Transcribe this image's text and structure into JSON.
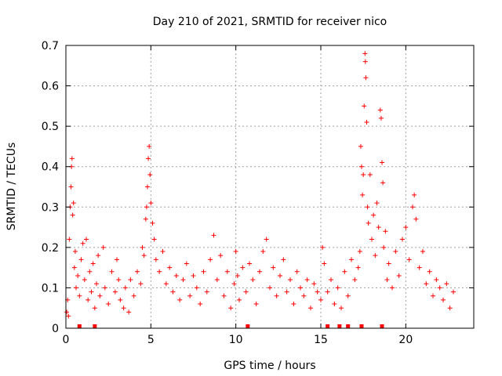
{
  "chart_data": {
    "type": "scatter",
    "title": "Day 210 of 2021, SRMTID for receiver nico",
    "xlabel": "GPS time / hours",
    "ylabel": "SRMTID / TECUs",
    "xlim": [
      0,
      24
    ],
    "ylim": [
      0,
      0.7
    ],
    "x_ticks": [
      0,
      5,
      10,
      15,
      20
    ],
    "x_tick_labels": [
      "0",
      "5",
      "10",
      "15",
      "20"
    ],
    "y_ticks": [
      0,
      0.1,
      0.2,
      0.3,
      0.4,
      0.5,
      0.6,
      0.7
    ],
    "y_tick_labels": [
      "0",
      "0.1",
      "0.2",
      "0.3",
      "0.4",
      "0.5",
      "0.6",
      "0.7"
    ],
    "grid": true,
    "marker": "+",
    "series_color": "#ff0000",
    "series": [
      {
        "name": "SRMTID",
        "points": [
          [
            0.05,
            0.04
          ],
          [
            0.1,
            0.07
          ],
          [
            0.15,
            0.03
          ],
          [
            0.2,
            0.22
          ],
          [
            0.25,
            0.3
          ],
          [
            0.3,
            0.35
          ],
          [
            0.33,
            0.4
          ],
          [
            0.36,
            0.42
          ],
          [
            0.4,
            0.28
          ],
          [
            0.45,
            0.31
          ],
          [
            0.5,
            0.15
          ],
          [
            0.55,
            0.19
          ],
          [
            0.6,
            0.1
          ],
          [
            0.7,
            0.13
          ],
          [
            0.8,
            0.08
          ],
          [
            0.9,
            0.17
          ],
          [
            1.0,
            0.21
          ],
          [
            1.1,
            0.12
          ],
          [
            1.2,
            0.22
          ],
          [
            1.3,
            0.07
          ],
          [
            1.4,
            0.14
          ],
          [
            1.5,
            0.09
          ],
          [
            1.6,
            0.16
          ],
          [
            1.7,
            0.05
          ],
          [
            1.8,
            0.11
          ],
          [
            1.9,
            0.18
          ],
          [
            2.0,
            0.08
          ],
          [
            2.2,
            0.2
          ],
          [
            2.3,
            0.1
          ],
          [
            2.5,
            0.06
          ],
          [
            2.7,
            0.14
          ],
          [
            2.9,
            0.09
          ],
          [
            3.0,
            0.17
          ],
          [
            3.1,
            0.12
          ],
          [
            3.2,
            0.07
          ],
          [
            3.4,
            0.05
          ],
          [
            3.5,
            0.1
          ],
          [
            3.7,
            0.04
          ],
          [
            3.8,
            0.12
          ],
          [
            4.0,
            0.08
          ],
          [
            4.2,
            0.14
          ],
          [
            4.4,
            0.11
          ],
          [
            4.5,
            0.2
          ],
          [
            4.6,
            0.18
          ],
          [
            4.7,
            0.27
          ],
          [
            4.75,
            0.3
          ],
          [
            4.8,
            0.35
          ],
          [
            4.85,
            0.42
          ],
          [
            4.9,
            0.45
          ],
          [
            4.95,
            0.38
          ],
          [
            5.0,
            0.31
          ],
          [
            5.1,
            0.26
          ],
          [
            5.2,
            0.22
          ],
          [
            5.3,
            0.17
          ],
          [
            5.5,
            0.14
          ],
          [
            5.7,
            0.19
          ],
          [
            5.9,
            0.11
          ],
          [
            6.1,
            0.15
          ],
          [
            6.3,
            0.09
          ],
          [
            6.5,
            0.13
          ],
          [
            6.7,
            0.07
          ],
          [
            6.9,
            0.12
          ],
          [
            7.1,
            0.16
          ],
          [
            7.3,
            0.08
          ],
          [
            7.5,
            0.13
          ],
          [
            7.7,
            0.1
          ],
          [
            7.9,
            0.06
          ],
          [
            8.1,
            0.14
          ],
          [
            8.3,
            0.09
          ],
          [
            8.5,
            0.17
          ],
          [
            8.7,
            0.23
          ],
          [
            8.9,
            0.12
          ],
          [
            9.1,
            0.18
          ],
          [
            9.3,
            0.08
          ],
          [
            9.5,
            0.14
          ],
          [
            9.7,
            0.05
          ],
          [
            9.9,
            0.11
          ],
          [
            10.0,
            0.19
          ],
          [
            10.1,
            0.13
          ],
          [
            10.2,
            0.07
          ],
          [
            10.4,
            0.15
          ],
          [
            10.6,
            0.09
          ],
          [
            10.8,
            0.16
          ],
          [
            11.0,
            0.12
          ],
          [
            11.2,
            0.06
          ],
          [
            11.4,
            0.14
          ],
          [
            11.6,
            0.19
          ],
          [
            11.8,
            0.22
          ],
          [
            12.0,
            0.1
          ],
          [
            12.2,
            0.15
          ],
          [
            12.4,
            0.08
          ],
          [
            12.6,
            0.13
          ],
          [
            12.8,
            0.17
          ],
          [
            13.0,
            0.09
          ],
          [
            13.2,
            0.12
          ],
          [
            13.4,
            0.06
          ],
          [
            13.6,
            0.14
          ],
          [
            13.8,
            0.1
          ],
          [
            14.0,
            0.08
          ],
          [
            14.2,
            0.12
          ],
          [
            14.4,
            0.05
          ],
          [
            14.6,
            0.11
          ],
          [
            14.8,
            0.09
          ],
          [
            15.0,
            0.07
          ],
          [
            15.1,
            0.2
          ],
          [
            15.2,
            0.16
          ],
          [
            15.4,
            0.09
          ],
          [
            15.6,
            0.12
          ],
          [
            15.8,
            0.06
          ],
          [
            16.0,
            0.1
          ],
          [
            16.2,
            0.05
          ],
          [
            16.4,
            0.14
          ],
          [
            16.6,
            0.08
          ],
          [
            16.8,
            0.17
          ],
          [
            17.0,
            0.12
          ],
          [
            17.2,
            0.15
          ],
          [
            17.3,
            0.19
          ],
          [
            17.35,
            0.45
          ],
          [
            17.4,
            0.4
          ],
          [
            17.45,
            0.33
          ],
          [
            17.5,
            0.38
          ],
          [
            17.55,
            0.55
          ],
          [
            17.6,
            0.68
          ],
          [
            17.62,
            0.66
          ],
          [
            17.65,
            0.62
          ],
          [
            17.7,
            0.51
          ],
          [
            17.75,
            0.3
          ],
          [
            17.8,
            0.26
          ],
          [
            17.9,
            0.38
          ],
          [
            18.0,
            0.22
          ],
          [
            18.1,
            0.28
          ],
          [
            18.2,
            0.18
          ],
          [
            18.3,
            0.31
          ],
          [
            18.4,
            0.25
          ],
          [
            18.5,
            0.54
          ],
          [
            18.55,
            0.52
          ],
          [
            18.6,
            0.41
          ],
          [
            18.65,
            0.36
          ],
          [
            18.7,
            0.2
          ],
          [
            18.8,
            0.24
          ],
          [
            18.9,
            0.12
          ],
          [
            19.0,
            0.16
          ],
          [
            19.2,
            0.1
          ],
          [
            19.4,
            0.19
          ],
          [
            19.6,
            0.13
          ],
          [
            19.8,
            0.22
          ],
          [
            20.0,
            0.25
          ],
          [
            20.2,
            0.17
          ],
          [
            20.4,
            0.3
          ],
          [
            20.5,
            0.33
          ],
          [
            20.6,
            0.27
          ],
          [
            20.8,
            0.15
          ],
          [
            21.0,
            0.19
          ],
          [
            21.2,
            0.11
          ],
          [
            21.4,
            0.14
          ],
          [
            21.6,
            0.08
          ],
          [
            21.8,
            0.12
          ],
          [
            22.0,
            0.1
          ],
          [
            22.2,
            0.07
          ],
          [
            22.4,
            0.11
          ],
          [
            22.6,
            0.05
          ],
          [
            22.8,
            0.09
          ]
        ]
      }
    ],
    "gap_markers_x": [
      0.8,
      1.7,
      10.7,
      15.4,
      16.1,
      16.6,
      17.4,
      18.6
    ]
  }
}
